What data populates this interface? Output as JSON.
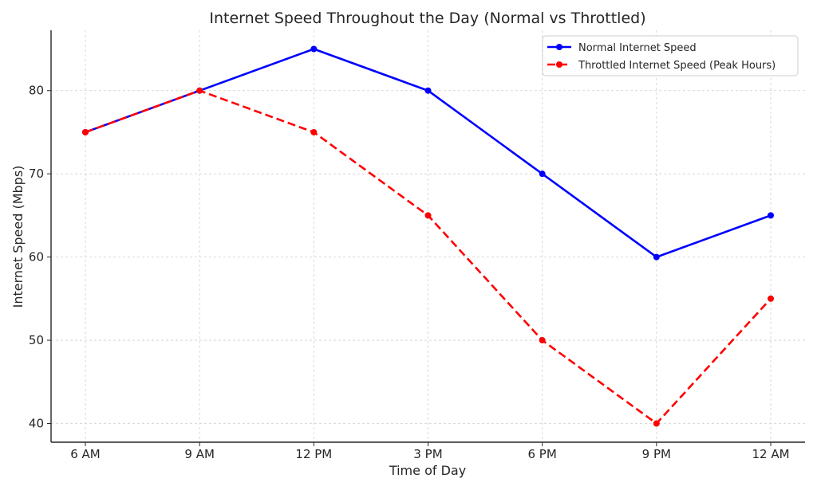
{
  "chart_data": {
    "type": "line",
    "title": "Internet Speed Throughout the Day (Normal vs Throttled)",
    "xlabel": "Time of Day",
    "ylabel": "Internet Speed (Mbps)",
    "categories": [
      "6 AM",
      "9 AM",
      "12 PM",
      "3 PM",
      "6 PM",
      "9 PM",
      "12 AM"
    ],
    "ylim": [
      37.75,
      87.25
    ],
    "yticks": [
      40,
      50,
      60,
      70,
      80
    ],
    "ytick_labels": [
      "40",
      "50",
      "60",
      "70",
      "80"
    ],
    "grid": true,
    "legend_position": "top-right",
    "series": [
      {
        "name": "Normal Internet Speed",
        "values": [
          75,
          80,
          85,
          80,
          70,
          60,
          65
        ],
        "color": "#0000ff",
        "style": "solid",
        "marker": "circle"
      },
      {
        "name": "Throttled Internet Speed (Peak Hours)",
        "values": [
          75,
          80,
          75,
          65,
          50,
          40,
          55
        ],
        "color": "#ff0000",
        "style": "dashed",
        "marker": "circle"
      }
    ]
  }
}
